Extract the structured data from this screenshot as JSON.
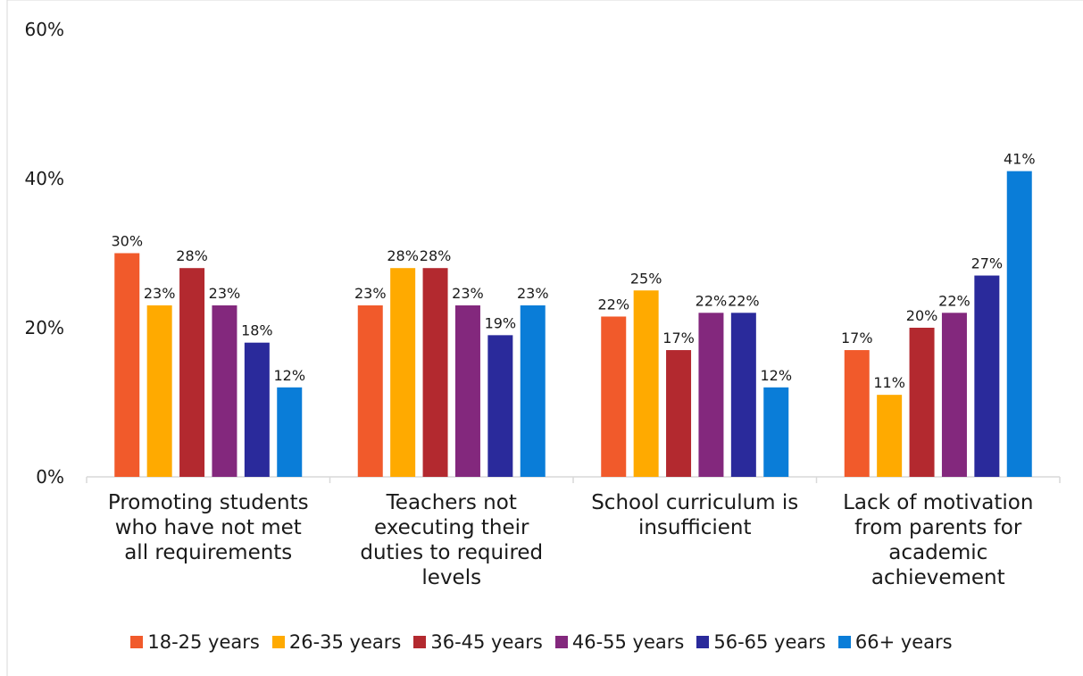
{
  "chart_data": {
    "type": "bar",
    "categories": [
      "Promoting students who have not met all requirements",
      "Teachers not executing their duties to required levels",
      "School curriculum is insufficient",
      "Lack of motivation from parents for academic achievement"
    ],
    "category_lines": [
      [
        "Promoting students",
        "who have not met",
        "all requirements"
      ],
      [
        "Teachers not",
        "executing their",
        "duties to required",
        "levels"
      ],
      [
        "School curriculum is",
        "insufficient"
      ],
      [
        "Lack of motivation",
        "from parents for",
        "academic",
        "achievement"
      ]
    ],
    "series": [
      {
        "name": "18-25 years",
        "color": "#F15A2B",
        "values": [
          30,
          23,
          21.5,
          17
        ],
        "labels": [
          "30%",
          "23%",
          "22%",
          "17%"
        ]
      },
      {
        "name": "26-35 years",
        "color": "#FFAA00",
        "values": [
          23,
          28,
          25,
          11
        ],
        "labels": [
          "23%",
          "28%",
          "25%",
          "11%"
        ]
      },
      {
        "name": "36-45 years",
        "color": "#B3292F",
        "values": [
          28,
          28,
          17,
          20
        ],
        "labels": [
          "28%",
          "28%",
          "17%",
          "20%"
        ]
      },
      {
        "name": "46-55 years",
        "color": "#83287D",
        "values": [
          23,
          23,
          22,
          22
        ],
        "labels": [
          "23%",
          "23%",
          "22%",
          "22%"
        ]
      },
      {
        "name": "56-65 years",
        "color": "#2A2A9B",
        "values": [
          18,
          19,
          22,
          27
        ],
        "labels": [
          "18%",
          "19%",
          "22%",
          "27%"
        ]
      },
      {
        "name": "66+ years",
        "color": "#0A7DD8",
        "values": [
          12,
          23,
          12,
          41
        ],
        "labels": [
          "12%",
          "23%",
          "12%",
          "41%"
        ]
      }
    ],
    "ylim": [
      0,
      60
    ],
    "yticks": [
      0,
      20,
      40,
      60
    ],
    "ytick_labels": [
      "0%",
      "20%",
      "40%",
      "60%"
    ],
    "grid": false,
    "legend_position": "bottom"
  }
}
